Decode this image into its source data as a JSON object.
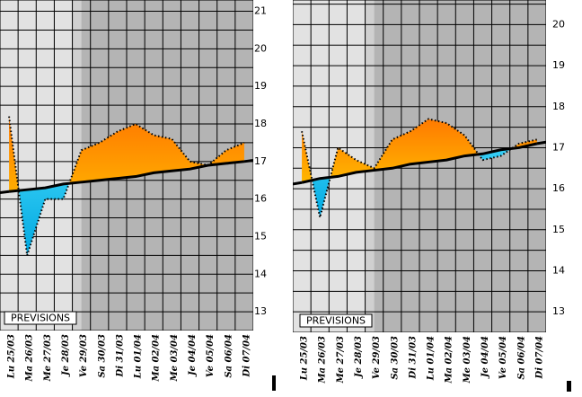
{
  "chart_data": [
    {
      "type": "line",
      "categories": [
        "Lu 25/03",
        "Ma 26/03",
        "Me 27/03",
        "Je 28/03",
        "Ve 29/03",
        "Sa 30/03",
        "Di 31/03",
        "Lu 01/04",
        "Ma 02/04",
        "Me 03/04",
        "Je 04/04",
        "Ve 05/04",
        "Sa 06/04",
        "Di 07/04"
      ],
      "series": [
        {
          "color": "#000000",
          "values": [
            18.2,
            14.5,
            16.0,
            16.0,
            17.3,
            17.5,
            17.8,
            18.0,
            17.7,
            17.6,
            17.0,
            16.9,
            17.3,
            17.5
          ]
        },
        {
          "color": "#000000",
          "values": [
            16.2,
            16.25,
            16.3,
            16.4,
            16.45,
            16.5,
            16.55,
            16.6,
            16.7,
            16.75,
            16.8,
            16.9,
            16.95,
            17.0
          ]
        }
      ],
      "above_color": "#ff9a00",
      "below_color": "#1ec8f0",
      "label": "PREVISIONS",
      "ylim": [
        12.5,
        21.3
      ],
      "yticks": [
        13,
        14,
        15,
        16,
        17,
        18,
        19,
        20,
        21
      ],
      "grid": true
    },
    {
      "type": "line",
      "categories": [
        "Lu 25/03",
        "Ma 26/03",
        "Me 27/03",
        "Je 28/03",
        "Ve 29/03",
        "Sa 30/03",
        "Di 31/03",
        "Lu 01/04",
        "Ma 02/04",
        "Me 03/04",
        "Je 04/04",
        "Ve 05/04",
        "Sa 06/04",
        "Di 07/04"
      ],
      "series": [
        {
          "color": "#000000",
          "values": [
            17.4,
            15.3,
            17.0,
            16.7,
            16.5,
            17.2,
            17.4,
            17.7,
            17.6,
            17.3,
            16.7,
            16.8,
            17.1,
            17.2
          ]
        },
        {
          "color": "#000000",
          "values": [
            16.15,
            16.25,
            16.3,
            16.4,
            16.45,
            16.5,
            16.6,
            16.65,
            16.7,
            16.8,
            16.85,
            16.95,
            17.0,
            17.1
          ]
        }
      ],
      "above_color": "#ff9a00",
      "below_color": "#1ec8f0",
      "label": "PREVISIONS",
      "ylim": [
        12.5,
        20.6
      ],
      "yticks": [
        13,
        14,
        15,
        16,
        17,
        18,
        19,
        20
      ],
      "grid": true
    }
  ]
}
